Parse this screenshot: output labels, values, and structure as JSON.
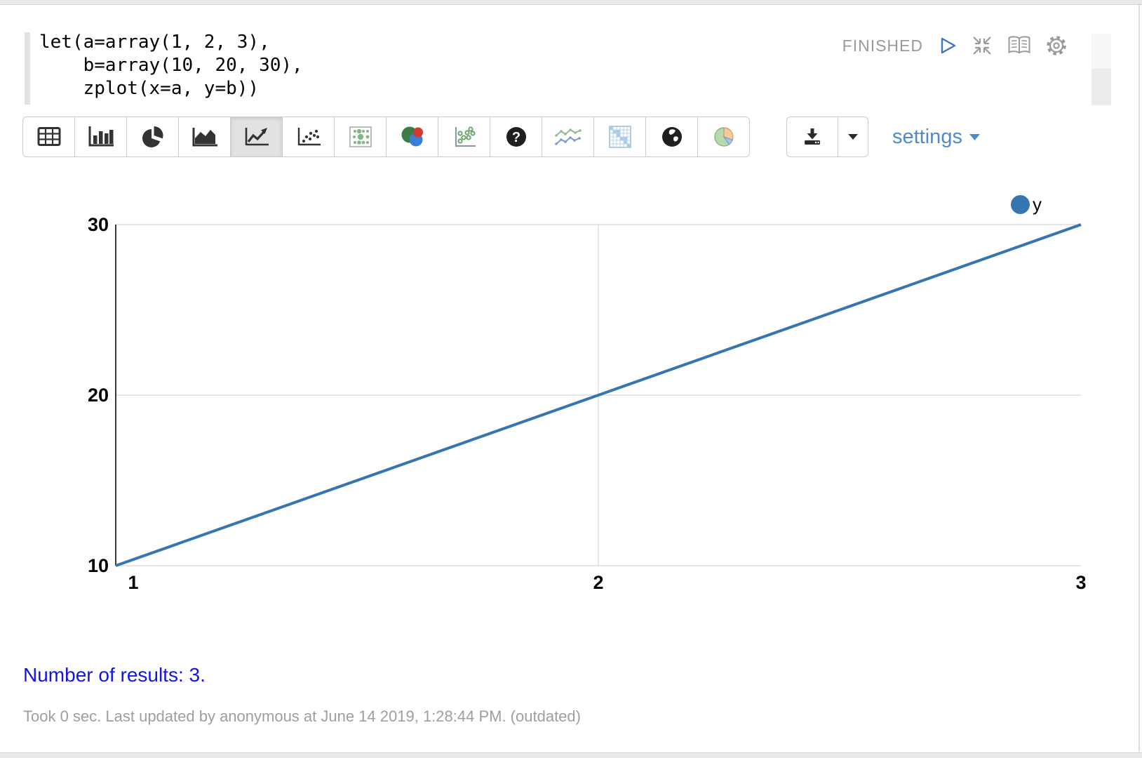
{
  "colors": {
    "series_blue": "#3576b0",
    "settings_link_blue": "#4f8bc9",
    "results_blue": "#1314e8",
    "muted_gray": "#9a9a9a",
    "icon_dark": "#333333"
  },
  "editor": {
    "code": "let(a=array(1, 2, 3),\n    b=array(10, 20, 30),\n    zplot(x=a, y=b))"
  },
  "paragraph_controls": {
    "status_label": "FINISHED",
    "icons": [
      "play-icon",
      "shrink-icon",
      "book-icon",
      "gear-icon"
    ]
  },
  "toolbar": {
    "chart_type_buttons": [
      {
        "name": "table",
        "icon": "table-icon",
        "selected": false
      },
      {
        "name": "bar-chart",
        "icon": "bar-chart-icon",
        "selected": false
      },
      {
        "name": "pie-chart",
        "icon": "pie-chart-icon",
        "selected": false
      },
      {
        "name": "area-chart",
        "icon": "area-chart-icon",
        "selected": false
      },
      {
        "name": "line-chart",
        "icon": "line-chart-icon",
        "selected": true
      },
      {
        "name": "scatter-chart",
        "icon": "scatter-icon",
        "selected": false
      },
      {
        "name": "bubble-grid-chart",
        "icon": "bubble-grid-icon",
        "selected": false
      },
      {
        "name": "venn-diagram",
        "icon": "venn-icon",
        "selected": false
      },
      {
        "name": "green-scatter-chart",
        "icon": "green-scatter-icon",
        "selected": false
      },
      {
        "name": "help",
        "icon": "question-icon",
        "selected": false
      },
      {
        "name": "multi-line-chart",
        "icon": "multi-line-icon",
        "selected": false
      },
      {
        "name": "matrix-chart",
        "icon": "matrix-icon",
        "selected": false
      },
      {
        "name": "map-chart",
        "icon": "globe-icon",
        "selected": false
      },
      {
        "name": "color-pie-chart",
        "icon": "color-pie-icon",
        "selected": false
      }
    ],
    "download_icon": "download-icon",
    "settings_label": "settings"
  },
  "chart_data": {
    "type": "line",
    "title": "",
    "xlabel": "",
    "ylabel": "",
    "x": [
      1,
      2,
      3
    ],
    "series": [
      {
        "name": "y",
        "values": [
          10,
          20,
          30
        ],
        "color": "#3576b0"
      }
    ],
    "xticks": [
      1,
      2,
      3
    ],
    "yticks": [
      10,
      20,
      30
    ],
    "xlim": [
      1,
      3
    ],
    "ylim": [
      10,
      30
    ],
    "grid": true,
    "legend_position": "top-right"
  },
  "results": {
    "summary": "Number of results: 3."
  },
  "footer": {
    "status_line": "Took 0 sec. Last updated by anonymous at June 14 2019, 1:28:44 PM. (outdated)"
  }
}
